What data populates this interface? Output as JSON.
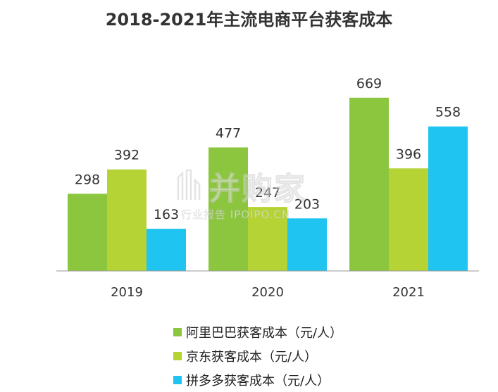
{
  "chart_data": {
    "type": "bar",
    "title": "2018-2021年主流电商平台获客成本",
    "categories": [
      "2019",
      "2020",
      "2021"
    ],
    "series": [
      {
        "name": "阿里巴巴获客成本（元/人）",
        "values": [
          298,
          477,
          669
        ],
        "color": "#8cc63f"
      },
      {
        "name": "京东获客成本（元/人）",
        "values": [
          392,
          247,
          396
        ],
        "color": "#b5d334"
      },
      {
        "name": "拼多多获客成本（元/人）",
        "values": [
          163,
          203,
          558
        ],
        "color": "#1fc5f0"
      }
    ],
    "ylim": [
      0,
      700
    ],
    "grid": false,
    "legend_position": "bottom"
  },
  "watermark": {
    "main_text": "并购家",
    "sub_text": "行业报告 IPOIPO.CN",
    "icon": "bar-chart-logo-icon"
  }
}
